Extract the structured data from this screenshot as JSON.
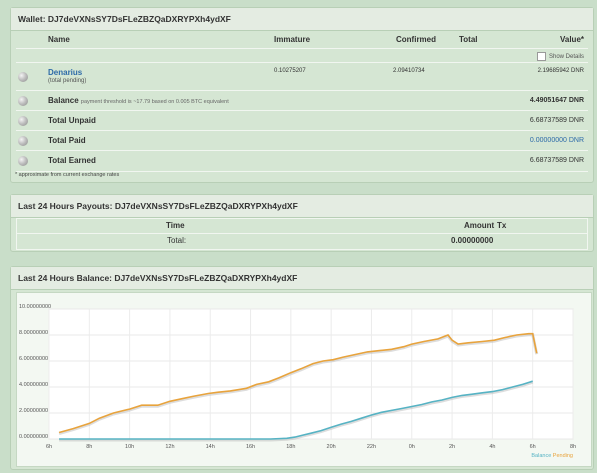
{
  "wallet": {
    "title": "Wallet: DJ7deVXNsSY7DsFLeZBZQaDXRYPXh4ydXF",
    "columns": {
      "name": "Name",
      "immature": "Immature",
      "confirmed": "Confirmed",
      "total": "Total",
      "value": "Value*"
    },
    "show_details_label": "Show Details",
    "coin": {
      "name": "Denarius",
      "sub": "(total pending)",
      "immature": "0.10275207",
      "confirmed": "2.09410734",
      "value": "2.19685942 DNR"
    },
    "balance": {
      "label": "Balance",
      "note": "payment threshold is ~17.79 based on 0.005 BTC equivalent",
      "value": "4.49051647 DNR"
    },
    "total_unpaid": {
      "label": "Total Unpaid",
      "value": "6.68737589 DNR"
    },
    "total_paid": {
      "label": "Total Paid",
      "value": "0.00000000 DNR"
    },
    "total_earned": {
      "label": "Total Earned",
      "value": "6.68737589 DNR"
    },
    "footnote": "* approximate from current exchange rates"
  },
  "payouts": {
    "title": "Last 24 Hours Payouts: DJ7deVXNsSY7DsFLeZBZQaDXRYPXh4ydXF",
    "col_time": "Time",
    "col_amount": "Amount",
    "col_tx": "Tx",
    "total_label": "Total:",
    "total_value": "0.00000000"
  },
  "balance_chart": {
    "title": "Last 24 Hours Balance: DJ7deVXNsSY7DsFLeZBZQaDXRYPXh4ydXF"
  },
  "colors": {
    "balance": "#56b3c4",
    "pending": "#e8a33c",
    "link": "#2d6aa8"
  },
  "chart_data": {
    "type": "line",
    "x_ticks": [
      "6h",
      "8h",
      "10h",
      "12h",
      "14h",
      "16h",
      "18h",
      "20h",
      "22h",
      "0h",
      "2h",
      "4h",
      "6h",
      "8h"
    ],
    "y_ticks": [
      "0.00000000",
      "2.00000000",
      "4.00000000",
      "6.00000000",
      "8.00000000",
      "10.00000000"
    ],
    "ylim": [
      0,
      10
    ],
    "xlim": [
      6,
      32
    ],
    "grid": true,
    "legend": [
      "Balance",
      "Pending"
    ],
    "legend_position": "bottom-right",
    "series": [
      {
        "name": "Pending",
        "color": "#e8a33c",
        "x": [
          6.5,
          7.2,
          8.0,
          8.5,
          9.2,
          10.0,
          10.6,
          11.4,
          12.0,
          12.6,
          13.2,
          13.9,
          14.4,
          15.0,
          15.8,
          16.3,
          16.9,
          17.4,
          18.0,
          18.5,
          19.1,
          19.6,
          20.1,
          20.6,
          21.2,
          21.8,
          22.4,
          23.0,
          23.6,
          24.0,
          24.6,
          25.3,
          25.8,
          26.0,
          26.3,
          26.8,
          27.5,
          28.1,
          28.6,
          29.2,
          29.8,
          30.0,
          30.2
        ],
        "values": [
          0.5,
          0.8,
          1.2,
          1.6,
          2.0,
          2.3,
          2.6,
          2.6,
          2.9,
          3.1,
          3.3,
          3.5,
          3.6,
          3.7,
          3.9,
          4.2,
          4.4,
          4.7,
          5.1,
          5.4,
          5.8,
          6.0,
          6.1,
          6.3,
          6.5,
          6.7,
          6.8,
          6.9,
          7.1,
          7.3,
          7.5,
          7.7,
          8.0,
          7.6,
          7.3,
          7.4,
          7.5,
          7.6,
          7.8,
          8.0,
          8.1,
          8.1,
          6.6
        ]
      },
      {
        "name": "Balance",
        "color": "#56b3c4",
        "x": [
          6.5,
          17.0,
          17.8,
          18.2,
          18.6,
          19.0,
          19.5,
          20.0,
          20.5,
          21.0,
          21.5,
          22.0,
          22.5,
          23.0,
          23.5,
          24.0,
          24.5,
          25.0,
          25.5,
          26.0,
          26.5,
          27.0,
          27.5,
          28.0,
          28.5,
          29.0,
          29.5,
          30.0
        ],
        "values": [
          0,
          0,
          0.05,
          0.15,
          0.3,
          0.45,
          0.65,
          0.9,
          1.15,
          1.35,
          1.6,
          1.85,
          2.05,
          2.2,
          2.35,
          2.5,
          2.65,
          2.85,
          3.0,
          3.2,
          3.35,
          3.45,
          3.55,
          3.65,
          3.8,
          4.0,
          4.2,
          4.45
        ]
      }
    ]
  }
}
